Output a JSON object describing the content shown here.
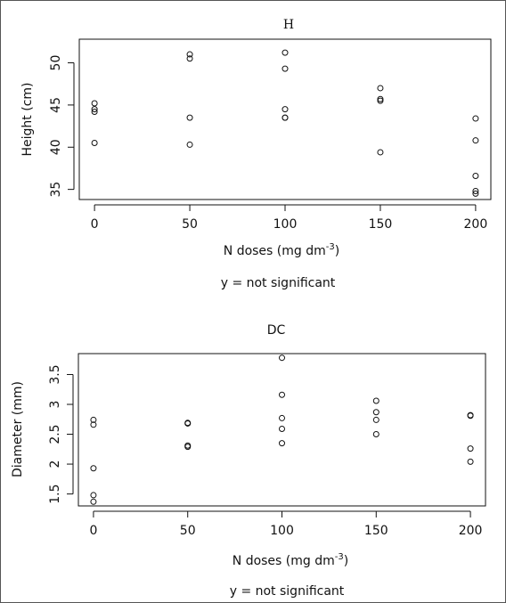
{
  "chart_data": [
    {
      "type": "scatter",
      "title": "H",
      "xlabel": "N doses (mg dm",
      "xlabel_sup": "-3",
      "xlabel_tail": ")",
      "ylabel": "Height (cm)",
      "note": "y = not significant",
      "xticks": [
        0,
        50,
        100,
        150,
        200
      ],
      "yticks": [
        35,
        40,
        45,
        50
      ],
      "xlim": [
        -8,
        208
      ],
      "ylim": [
        33.8,
        52.8
      ],
      "x": [
        0,
        0,
        0,
        0,
        50,
        50,
        50,
        50,
        100,
        100,
        100,
        100,
        100,
        150,
        150,
        150,
        150,
        200,
        200,
        200,
        200,
        200
      ],
      "y": [
        45.2,
        44.2,
        44.5,
        40.5,
        51.0,
        50.5,
        43.5,
        40.3,
        51.2,
        49.3,
        44.5,
        43.5,
        43.5,
        47.0,
        45.7,
        45.5,
        39.4,
        43.4,
        40.8,
        36.6,
        34.8,
        34.5
      ]
    },
    {
      "type": "scatter",
      "title": "DC",
      "xlabel": "N doses (mg dm",
      "xlabel_sup": "-3",
      "xlabel_tail": ")",
      "ylabel": "Diameter (mm)",
      "note": "y = not significant",
      "xticks": [
        0,
        50,
        100,
        150,
        200
      ],
      "yticks": [
        1.5,
        2.0,
        2.5,
        3.0,
        3.5
      ],
      "xlim": [
        -8,
        208
      ],
      "ylim": [
        1.3,
        3.85
      ],
      "x": [
        0,
        0,
        0,
        0,
        0,
        50,
        50,
        50,
        50,
        100,
        100,
        100,
        100,
        100,
        150,
        150,
        150,
        150,
        200,
        200,
        200,
        200
      ],
      "y": [
        2.74,
        2.66,
        1.93,
        1.48,
        1.37,
        2.69,
        2.68,
        2.31,
        2.29,
        3.78,
        3.16,
        2.77,
        2.59,
        2.35,
        3.06,
        2.87,
        2.74,
        2.5,
        2.82,
        2.81,
        2.26,
        2.04
      ]
    }
  ]
}
